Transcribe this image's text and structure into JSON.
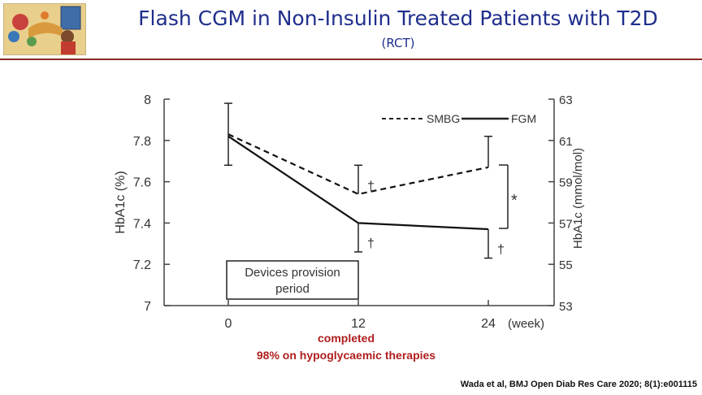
{
  "slide": {
    "title": "Flash CGM in Non-Insulin Treated Patients with T2D",
    "subtitle": "(RCT)",
    "footer": "Wada et al, BMJ Open Diab Res Care 2020; 8(1):e001115"
  },
  "colors": {
    "title": "#1f2e8c",
    "rule": "#8b2a2a",
    "note": "#b01e1e"
  },
  "chart_data": {
    "type": "line",
    "x": [
      0,
      12,
      24
    ],
    "x_tick_labels": [
      "0",
      "12",
      "24"
    ],
    "x_unit": "(week)",
    "ylabel": "HbA1c (%)",
    "ylabel_right": "HbA1c (mmol/mol)",
    "ylim": [
      7,
      8
    ],
    "y_ticks": [
      "8",
      "7.8",
      "7.6",
      "7.4",
      "7.2",
      "7"
    ],
    "ylim_right": [
      53,
      63
    ],
    "y_ticks_right": [
      "63",
      "61",
      "59",
      "57",
      "55",
      "53"
    ],
    "legend_position": "top-right",
    "series": [
      {
        "name": "SMBG",
        "style": "dashed",
        "values": [
          7.83,
          7.54,
          7.67
        ],
        "err_upper": [
          7.98,
          7.68,
          7.82
        ],
        "err_lower": [
          7.68,
          7.54,
          7.67
        ],
        "marks": [
          "",
          "†",
          ""
        ]
      },
      {
        "name": "FGM",
        "style": "solid",
        "values": [
          7.82,
          7.4,
          7.37
        ],
        "err_upper": [
          7.82,
          7.4,
          7.37
        ],
        "err_lower": [
          7.82,
          7.26,
          7.23
        ],
        "marks": [
          "",
          "†",
          "†"
        ]
      }
    ],
    "significance_marker": "*",
    "annotation_box": [
      "Devices provision",
      "period"
    ],
    "notes": [
      "completed",
      "98% on hypoglycaemic therapies"
    ]
  }
}
